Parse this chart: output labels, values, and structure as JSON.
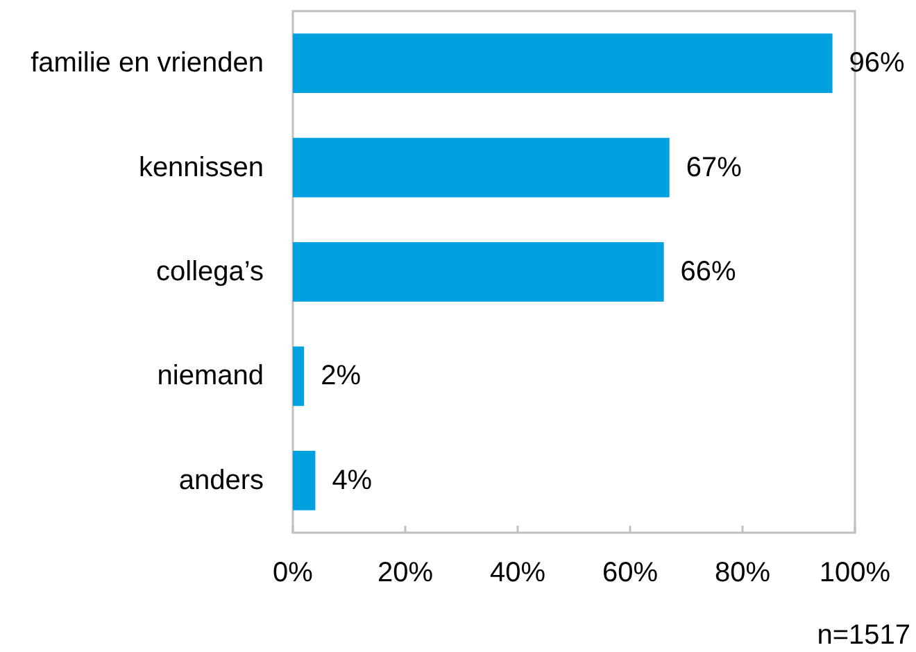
{
  "chart_data": {
    "type": "bar",
    "orientation": "horizontal",
    "categories": [
      "familie en vrienden",
      "kennissen",
      "collega’s",
      "niemand",
      "anders"
    ],
    "values": [
      96,
      67,
      66,
      2,
      4
    ],
    "color": "#00a1de",
    "value_labels": [
      "96%",
      "67%",
      "66%",
      "2%",
      "4%"
    ],
    "xlim": [
      0,
      100
    ],
    "xticks": [
      {
        "value": 0,
        "label": "0%"
      },
      {
        "value": 20,
        "label": "20%"
      },
      {
        "value": 40,
        "label": "40%"
      },
      {
        "value": 60,
        "label": "60%"
      },
      {
        "value": 80,
        "label": "80%"
      },
      {
        "value": 100,
        "label": "100%"
      }
    ],
    "grid": false,
    "annotations": [
      "n=1517"
    ]
  }
}
